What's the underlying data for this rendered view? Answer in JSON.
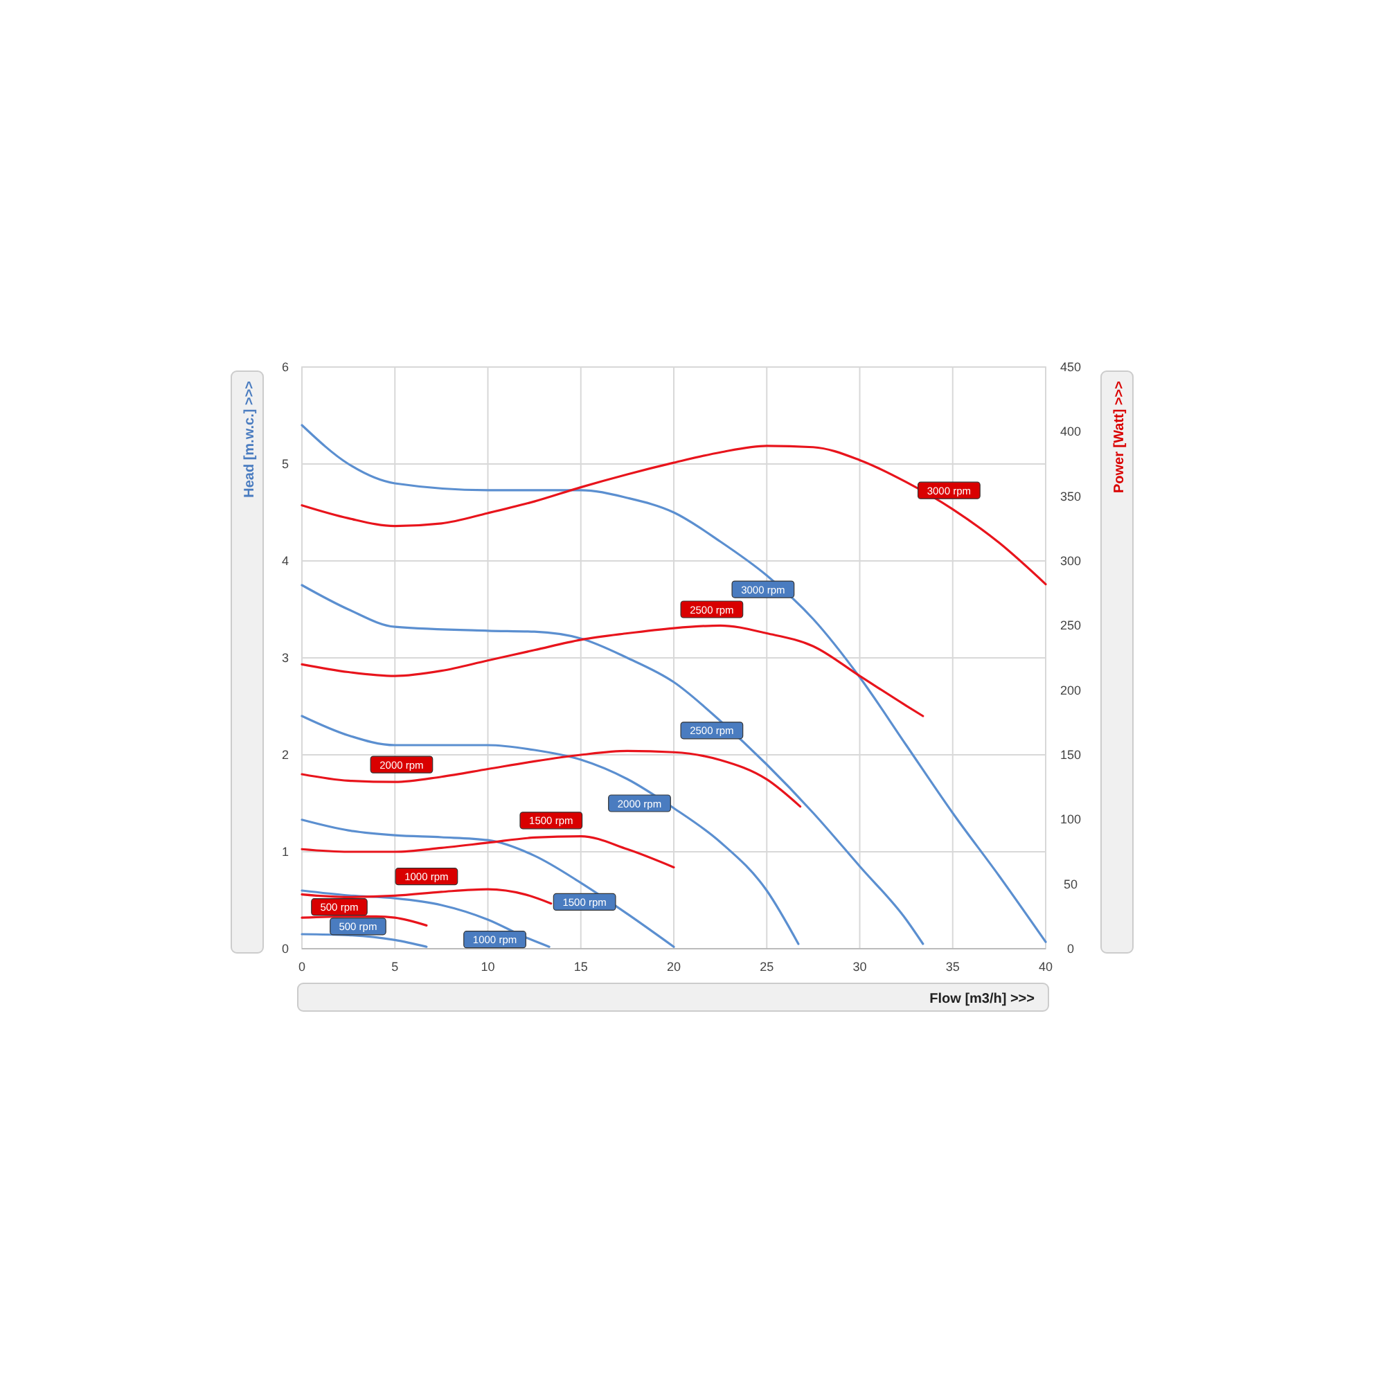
{
  "chart_data": {
    "type": "line",
    "xlabel": "Flow [m3/h]   >>>",
    "ylabel": "Head [m.w.c.]   >>>",
    "y2label": "Power  [Watt]   >>>",
    "xlim": [
      0,
      40
    ],
    "xticks": [
      0,
      5,
      10,
      15,
      20,
      25,
      30,
      35,
      40
    ],
    "ylim": [
      0,
      6
    ],
    "yticks": [
      0,
      1,
      2,
      3,
      4,
      5,
      6
    ],
    "y2lim": [
      0,
      450
    ],
    "y2ticks": [
      0,
      50,
      100,
      150,
      200,
      250,
      300,
      350,
      400,
      450
    ],
    "grid": true,
    "marker": "none",
    "line_style": "solid",
    "series": [
      {
        "name": "3000 rpm",
        "color": "#5b8fd0",
        "x": [
          0,
          2.5,
          5,
          10,
          15,
          17.5,
          20,
          22.5,
          25,
          27.5,
          30,
          32.5,
          35,
          37.5,
          40
        ],
        "values": [
          5.4,
          5.0,
          4.8,
          4.73,
          4.73,
          4.65,
          4.5,
          4.2,
          3.85,
          3.4,
          2.8,
          2.1,
          1.4,
          0.75,
          0.07
        ]
      },
      {
        "name": "2500 rpm",
        "color": "#5b8fd0",
        "x": [
          0,
          2.5,
          5,
          10,
          12.5,
          15,
          17.5,
          20,
          22.5,
          25,
          27.5,
          30,
          32.5,
          33.4
        ],
        "values": [
          3.75,
          3.5,
          3.32,
          3.28,
          3.27,
          3.2,
          3.0,
          2.75,
          2.35,
          1.9,
          1.4,
          0.85,
          0.3,
          0.05
        ]
      },
      {
        "name": "2000 rpm",
        "color": "#5b8fd0",
        "x": [
          0,
          2.5,
          5,
          10,
          12.5,
          15,
          17.5,
          20,
          22.5,
          25,
          26.7
        ],
        "values": [
          2.4,
          2.2,
          2.1,
          2.1,
          2.05,
          1.95,
          1.75,
          1.45,
          1.1,
          0.6,
          0.05
        ]
      },
      {
        "name": "1500 rpm",
        "color": "#5b8fd0",
        "x": [
          0,
          2.5,
          5,
          7.5,
          10,
          12.5,
          15,
          17.5,
          20
        ],
        "values": [
          1.33,
          1.22,
          1.17,
          1.15,
          1.12,
          0.96,
          0.68,
          0.36,
          0.02
        ]
      },
      {
        "name": "1000 rpm",
        "color": "#5b8fd0",
        "x": [
          0,
          2.5,
          5,
          7.5,
          10,
          12,
          13.3
        ],
        "values": [
          0.6,
          0.55,
          0.52,
          0.45,
          0.3,
          0.12,
          0.02
        ]
      },
      {
        "name": "500 rpm",
        "color": "#5b8fd0",
        "x": [
          0,
          2.5,
          5,
          6.7
        ],
        "values": [
          0.15,
          0.14,
          0.09,
          0.02
        ]
      },
      {
        "name": "3000 rpm",
        "color": "#e8141c",
        "axis": "y2",
        "x": [
          0,
          2.5,
          5,
          7.5,
          10,
          12.5,
          15,
          17.5,
          20,
          22.5,
          25,
          27.5,
          30,
          32.5,
          35,
          37.5,
          40
        ],
        "values": [
          343,
          333,
          327,
          329,
          337,
          346,
          357,
          367,
          376,
          384,
          389,
          388,
          378,
          361,
          340,
          314,
          282
        ]
      },
      {
        "name": "2500 rpm",
        "color": "#e8141c",
        "axis": "y2",
        "x": [
          0,
          2.5,
          5,
          7.5,
          10,
          12.5,
          15,
          17.5,
          20,
          22.5,
          25,
          27.5,
          30,
          32.5,
          33.4
        ],
        "values": [
          220,
          214,
          211,
          215,
          223,
          231,
          239,
          244,
          248,
          250,
          244,
          234,
          211,
          188,
          180
        ]
      },
      {
        "name": "2000 rpm",
        "color": "#e8141c",
        "axis": "y2",
        "x": [
          0,
          2.5,
          5,
          7.5,
          10,
          12.5,
          15,
          17.5,
          20,
          22.5,
          25,
          26.8
        ],
        "values": [
          135,
          130,
          129,
          133,
          139,
          145,
          150,
          153,
          152,
          146,
          131,
          110
        ]
      },
      {
        "name": "1500 rpm",
        "color": "#e8141c",
        "axis": "y2",
        "x": [
          0,
          2.5,
          5,
          7.5,
          10,
          12.5,
          15,
          17.5,
          20
        ],
        "values": [
          77,
          75,
          75,
          78,
          82,
          86,
          87,
          77,
          63
        ]
      },
      {
        "name": "1000 rpm",
        "color": "#e8141c",
        "axis": "y2",
        "x": [
          0,
          2.5,
          5,
          7.5,
          10,
          12,
          13.4
        ],
        "values": [
          42,
          40,
          41,
          44,
          46,
          42,
          35
        ]
      },
      {
        "name": "500 rpm",
        "color": "#e8141c",
        "axis": "y2",
        "x": [
          0,
          2.5,
          4,
          5,
          6.7
        ],
        "values": [
          24,
          25,
          25,
          24,
          18
        ]
      }
    ]
  }
}
